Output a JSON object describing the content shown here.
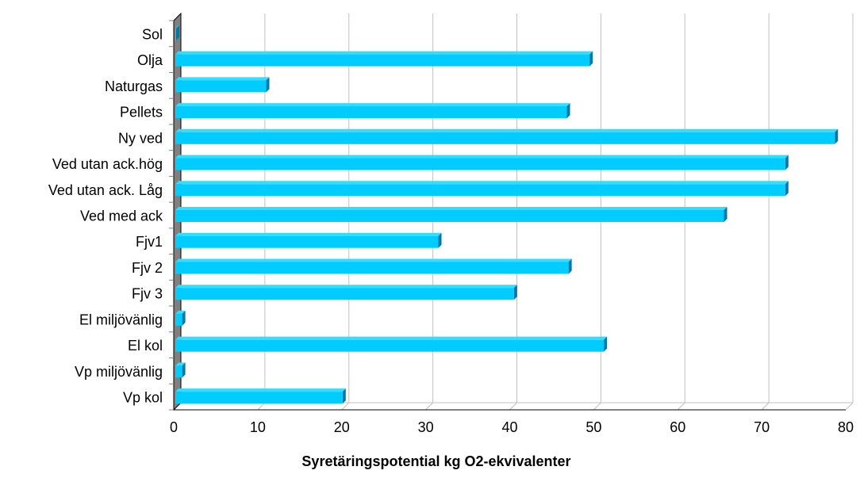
{
  "chart_data": {
    "type": "bar",
    "orientation": "horizontal",
    "categories": [
      "Sol",
      "Olja",
      "Naturgas",
      "Pellets",
      "Ny ved",
      "Ved utan ack.hög",
      "Ved utan ack. Låg",
      "Ved med ack",
      "Fjv1",
      "Fjv 2",
      "Fjv 3",
      "El miljövänlig",
      "El kol",
      "Vp miljövänlig",
      "Vp kol"
    ],
    "values": [
      0.2,
      49.5,
      11,
      46.8,
      78.7,
      72.8,
      72.8,
      65.5,
      31.5,
      47,
      40.5,
      1,
      51.2,
      1,
      20.1
    ],
    "xlabel": "Syretäringspotential kg O2-ekvivalenter",
    "xlim": [
      0,
      80
    ],
    "xticks": [
      0,
      10,
      20,
      30,
      40,
      50,
      60,
      70,
      80
    ],
    "grid": "vertical",
    "legend": "none",
    "colors": {
      "bar_front": "#00ccff",
      "bar_top": "#33ddff",
      "bar_side": "#0077a6",
      "wall": "#808080",
      "grid": "#c0c0c0"
    }
  }
}
